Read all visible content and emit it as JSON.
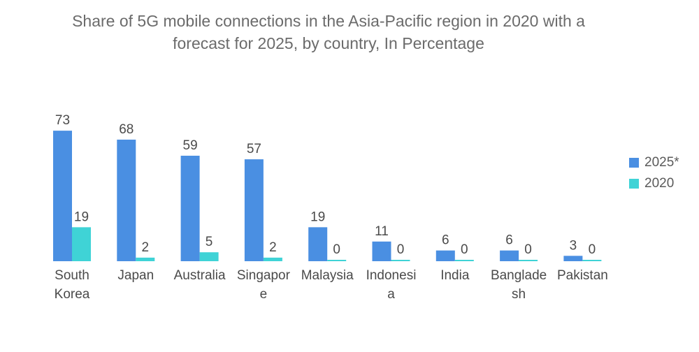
{
  "chart_data": {
    "type": "bar",
    "title_lines": [
      "Share of 5G mobile connections in the Asia-Pacific region in 2020 with a",
      "forecast for 2025, by country, In Percentage"
    ],
    "categories": [
      [
        "South",
        "Korea"
      ],
      [
        "Japan"
      ],
      [
        "Australia"
      ],
      [
        "Singapor",
        "e"
      ],
      [
        "Malaysia"
      ],
      [
        "Indonesi",
        "a"
      ],
      [
        "India"
      ],
      [
        "Banglade",
        "sh"
      ],
      [
        "Pakistan"
      ]
    ],
    "series": [
      {
        "name": "2025*",
        "color": "#4a8fe2",
        "values": [
          73,
          68,
          59,
          57,
          19,
          11,
          6,
          6,
          3
        ]
      },
      {
        "name": "2020",
        "color": "#3fd3d6",
        "values": [
          19,
          2,
          5,
          2,
          0,
          0,
          0,
          0,
          0
        ]
      }
    ],
    "ylim": [
      0,
      73
    ],
    "grid": false,
    "legend_position": "right"
  }
}
